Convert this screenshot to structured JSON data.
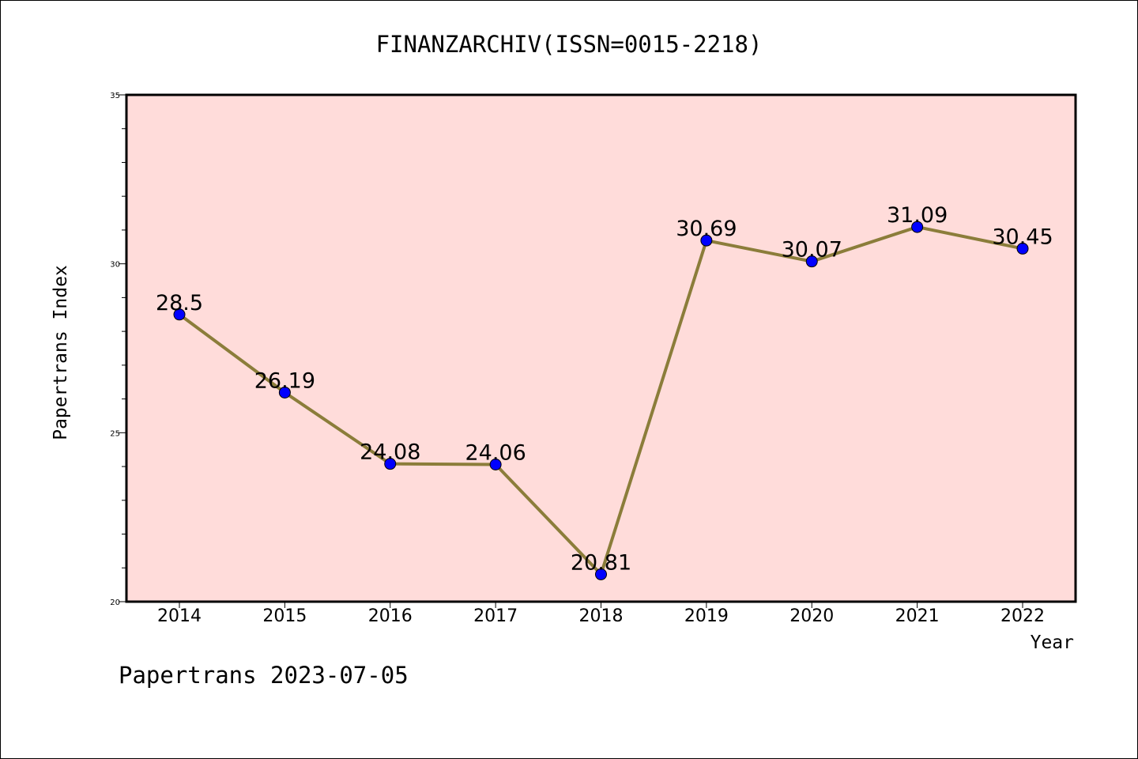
{
  "chart_data": {
    "type": "line",
    "title": "FINANZARCHIV(ISSN=0015-2218)",
    "xlabel": "Year",
    "ylabel": "Papertrans Index",
    "footer": "Papertrans 2023-07-05",
    "categories": [
      "2014",
      "2015",
      "2016",
      "2017",
      "2018",
      "2019",
      "2020",
      "2021",
      "2022"
    ],
    "series": [
      {
        "values": [
          28.5,
          26.19,
          24.08,
          24.06,
          20.81,
          30.69,
          30.07,
          31.09,
          30.45
        ]
      }
    ],
    "data_labels": [
      "28.5",
      "26.19",
      "24.08",
      "24.06",
      "20.81",
      "30.69",
      "30.07",
      "31.09",
      "30.45"
    ],
    "ylim": [
      20,
      35
    ],
    "y_tick_labels": [
      "20",
      "25",
      "30",
      "35"
    ],
    "grid": false,
    "legend": "none",
    "colors": {
      "plot_background": "#FFDCDA",
      "line": "#8B7D3A",
      "marker": "#0000FF",
      "axis": "#000000"
    }
  }
}
